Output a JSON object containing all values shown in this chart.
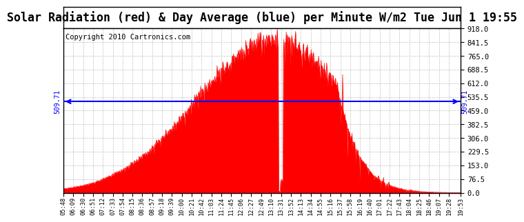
{
  "title": "Solar Radiation (red) & Day Average (blue) per Minute W/m2 Tue Jun 1 19:55",
  "copyright": "Copyright 2010 Cartronics.com",
  "y_max": 918.0,
  "y_min": 0.0,
  "y_ticks": [
    0.0,
    76.5,
    153.0,
    229.5,
    306.0,
    382.5,
    459.0,
    535.5,
    612.0,
    688.5,
    765.0,
    841.5,
    918.0
  ],
  "average_value": 509.71,
  "x_labels": [
    "05:48",
    "06:09",
    "06:30",
    "06:51",
    "07:12",
    "07:33",
    "07:54",
    "08:15",
    "08:36",
    "08:57",
    "09:18",
    "09:39",
    "10:00",
    "10:21",
    "10:42",
    "11:03",
    "11:24",
    "11:45",
    "12:06",
    "12:27",
    "12:49",
    "13:10",
    "13:31",
    "13:52",
    "14:13",
    "14:34",
    "14:55",
    "15:16",
    "15:37",
    "15:58",
    "16:19",
    "16:40",
    "17:01",
    "17:22",
    "17:43",
    "18:04",
    "18:25",
    "18:46",
    "19:07",
    "19:28",
    "19:53"
  ],
  "fill_color": "#FF0000",
  "avg_line_color": "#0000FF",
  "background_color": "#FFFFFF",
  "grid_color": "#C0C0C0",
  "title_fontsize": 12,
  "copyright_fontsize": 7.5
}
